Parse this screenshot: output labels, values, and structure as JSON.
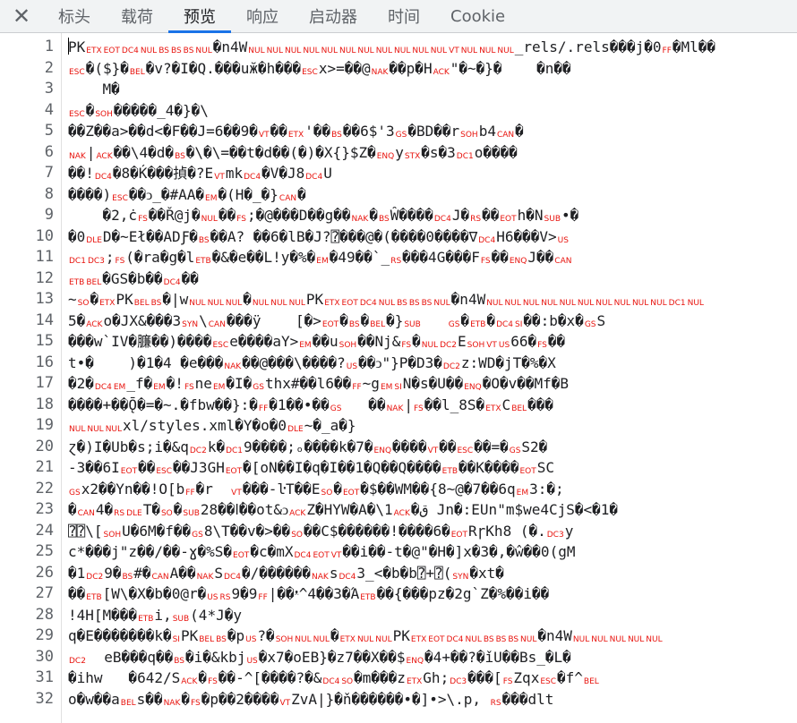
{
  "tabs": {
    "close_icon": "close-icon",
    "items": [
      {
        "label": "标头",
        "active": false
      },
      {
        "label": "载荷",
        "active": false
      },
      {
        "label": "预览",
        "active": true
      },
      {
        "label": "响应",
        "active": false
      },
      {
        "label": "启动器",
        "active": false
      },
      {
        "label": "时间",
        "active": false
      },
      {
        "label": "Cookie",
        "active": false
      }
    ],
    "accent_color": "#1a73e8"
  },
  "colors": {
    "control_char": "#e8140e",
    "text": "#202124",
    "line_number": "#5f6368"
  },
  "lines": [
    [
      "PK",
      [
        "ETX",
        "EOT",
        "DC4",
        "NUL",
        "BS",
        "BS",
        "BS",
        "NUL"
      ],
      "�n4W",
      [
        "NUL",
        "NUL",
        "NUL",
        "NUL",
        "NUL",
        "NUL",
        "NUL",
        "NUL",
        "NUL",
        "NUL",
        "NUL",
        "VT",
        "NUL",
        "NUL",
        "NUL"
      ],
      "_rels/.rels���j�0",
      [
        "FF"
      ],
      "�Ml��"
    ],
    [
      [
        "ESC"
      ],
      "�($}�",
      [
        "BEL"
      ],
      "�v?�I�Q.���uӂ�h���",
      [
        "ESC"
      ],
      "x>=��@",
      [
        "NAK"
      ],
      "��p�H",
      [
        "ACK"
      ],
      "\"�~�}�    �n��"
    ],
    [
      "    M�"
    ],
    [
      [
        "ESC"
      ],
      "�",
      [
        "SOH"
      ],
      "�����_4�}�\\"
    ],
    [
      "��Z��a>��d<�F��J=6��9�",
      [
        "VT"
      ],
      "��",
      [
        "ETX"
      ],
      "'��",
      [
        "BS"
      ],
      "��6$'3",
      [
        "GS"
      ],
      "�BD��r",
      [
        "SOH"
      ],
      "b4",
      [
        "CAN"
      ],
      "�"
    ],
    [
      [
        "NAK"
      ],
      "|",
      [
        "ACK"
      ],
      "��\\4�d�",
      [
        "BS"
      ],
      "�\\�\\=��t�d��(�)�X{}$Z�",
      [
        "ENQ"
      ],
      "y",
      [
        "STX"
      ],
      "�s�3",
      [
        "DC1"
      ],
      "o����"
    ],
    [
      "��!",
      [
        "DC4"
      ],
      "�8�Ḱ���揁�?E",
      [
        "VT"
      ],
      "mk",
      [
        "DC4"
      ],
      "�V�J8",
      [
        "DC4"
      ],
      "U"
    ],
    [
      "����)",
      [
        "ESC"
      ],
      "��ↄ_�#AA�",
      [
        "EM"
      ],
      "�(H�_�}",
      [
        "CAN"
      ],
      "�"
    ],
    [
      "    �2,ċ",
      [
        "FS"
      ],
      "��Ř@j�",
      [
        "NUL"
      ],
      "��",
      [
        "FS"
      ],
      ";�@���D��g��",
      [
        "NAK"
      ],
      "�",
      [
        "BS"
      ],
      "Ŵ����",
      [
        "DC4"
      ],
      "J�",
      [
        "RS"
      ],
      "��",
      [
        "EOT"
      ],
      "h�N",
      [
        "SUB"
      ],
      "•�"
    ],
    [
      "�0",
      [
        "DLE"
      ],
      "D�~Eł��ADƑ�",
      [
        "BS"
      ],
      "��A? ��6�lB�J?⍰���@�(����0����∇",
      [
        "DC4"
      ],
      "H6���V>",
      [
        "US"
      ]
    ],
    [
      [
        "DC1",
        "DC3"
      ],
      ";",
      [
        "FS"
      ],
      "(�ra�g�l",
      [
        "ETB"
      ],
      "�&�e��L!y�%�",
      [
        "EM"
      ],
      "�49��`_",
      [
        "RS"
      ],
      "���4G���F",
      [
        "FS"
      ],
      "��",
      [
        "ENQ"
      ],
      "J��",
      [
        "CAN"
      ]
    ],
    [
      [
        "ETB",
        "BEL"
      ],
      "�GS�b��",
      [
        "DC4"
      ],
      "��"
    ],
    [
      "~",
      [
        "SO"
      ],
      "�",
      [
        "ETX"
      ],
      "PK",
      [
        "BEL",
        "BS"
      ],
      "�|w",
      [
        "NUL",
        "NUL",
        "NUL"
      ],
      "�",
      [
        "NUL",
        "NUL",
        "NUL"
      ],
      "PK",
      [
        "ETX",
        "EOT",
        "DC4",
        "NUL",
        "BS",
        "BS",
        "BS",
        "NUL"
      ],
      "�n4W",
      [
        "NUL",
        "NUL",
        "NUL",
        "NUL",
        "NUL",
        "NUL",
        "NUL",
        "NUL",
        "NUL",
        "NUL",
        "DC1",
        "NUL"
      ]
    ],
    [
      "5�",
      [
        "ACK"
      ],
      "o�JX&���3",
      [
        "SYN"
      ],
      "\\",
      [
        "CAN"
      ],
      "���ÿ    [�>",
      [
        "EOT"
      ],
      "�",
      [
        "BS"
      ],
      "�",
      [
        "BEL"
      ],
      "�}",
      [
        "SUB"
      ],
      "   ",
      [
        "GS"
      ],
      "�",
      [
        "ETB"
      ],
      "�",
      [
        "DC4",
        "SI"
      ],
      "��:b�x�",
      [
        "GS"
      ],
      "S"
    ],
    [
      "���w`IV�臁��)����",
      [
        "ESC"
      ],
      "e����aY>",
      [
        "EM"
      ],
      "��u",
      [
        "SOH"
      ],
      "��Nj&",
      [
        "FS"
      ],
      "�",
      [
        "NUL",
        "DC2"
      ],
      "E",
      [
        "SOH",
        "VT",
        "US"
      ],
      "66�",
      [
        "FS"
      ],
      "��"
    ],
    [
      "t•�    )�1�4 �e���",
      [
        "NAK"
      ],
      "��@���\\����?",
      [
        "US"
      ],
      "��ↄ\"}P�D3�",
      [
        "DC2"
      ],
      "z:WD�jT�%�X"
    ],
    [
      "�2�",
      [
        "DC4",
        "EM"
      ],
      "_f�",
      [
        "EM"
      ],
      "�!",
      [
        "FS"
      ],
      "ne",
      [
        "EM"
      ],
      "�I�",
      [
        "GS"
      ],
      "thx#��l6��",
      [
        "FF"
      ],
      "~g",
      [
        "EM",
        "SI"
      ],
      "N�s�U��",
      [
        "ENQ"
      ],
      "�O�v��Mf�B"
    ],
    [
      "����+��Ǭ�=�~.�fbw��}:�",
      [
        "FF"
      ],
      "�1��•��",
      [
        "GS"
      ],
      "   ��",
      [
        "NAK"
      ],
      "|",
      [
        "FS"
      ],
      "��l_8S�",
      [
        "ETX"
      ],
      "C",
      [
        "BEL"
      ],
      "���"
    ],
    [
      [
        "NUL",
        "NUL",
        "NUL"
      ],
      "xl/styles.xml�Y�o�0",
      [
        "DLE"
      ],
      "~�_a�}"
    ],
    [
      "ɀ�)I�Ub�s;i�&q",
      [
        "DC2"
      ],
      "k�",
      [
        "DC1"
      ],
      "9����;ₒ����k�7�",
      [
        "ENQ"
      ],
      "����",
      [
        "VT"
      ],
      "��",
      [
        "ESC"
      ],
      "��=�",
      [
        "GS"
      ],
      "S2�"
    ],
    [
      "-3��6I",
      [
        "EOT"
      ],
      "��",
      [
        "ESC"
      ],
      "��J3GH",
      [
        "EOT"
      ],
      "�[oN��I�q�I��1�Q��Q����",
      [
        "ETB"
      ],
      "��K����",
      [
        "EOT"
      ],
      "SC"
    ],
    [
      [
        "GS"
      ],
      "x2��Yn��!O[b",
      [
        "FF"
      ],
      "�r  ",
      [
        "VT"
      ],
      "���-ŀT��E",
      [
        "SO"
      ],
      "�",
      [
        "EOT"
      ],
      "�$��WM��{8~@�7��6q",
      [
        "EM"
      ],
      "3:�;"
    ],
    [
      "�",
      [
        "CAN"
      ],
      "4�",
      [
        "RS",
        "DLE"
      ],
      "T�",
      [
        "SO"
      ],
      "�",
      [
        "SUB"
      ],
      "28��lٰ��ot&ↄ",
      [
        "ACK"
      ],
      "Z�HYW�A�\\1",
      [
        "ACK"
      ],
      "�ق Jn�:EUn\"m$we4CjS�<�1�"
    ],
    [
      "⍰⍰\\[",
      [
        "SOH"
      ],
      "U�6M�f��",
      [
        "GS"
      ],
      "8\\T��v�>��",
      [
        "SO"
      ],
      "��C$������!����6�",
      [
        "EOT"
      ],
      "RɼKh8 (�.",
      [
        "DC3"
      ],
      "y"
    ],
    [
      "c*���j\"z��/��-ɣ�%S�",
      [
        "EOT"
      ],
      "�c�mX",
      [
        "DC4",
        "EOT",
        "VT"
      ],
      "��i��-t�@\"�H�]x�3�,�ŵ��0(gM"
    ],
    [
      "�1",
      [
        "DC2"
      ],
      "9�",
      [
        "BS"
      ],
      "#�",
      [
        "CAN"
      ],
      "A��",
      [
        "NAK"
      ],
      "S",
      [
        "DC4"
      ],
      "�/������",
      [
        "NAK"
      ],
      "s",
      [
        "DC4"
      ],
      "3_<�b�b⍰+⍰(",
      [
        "SYN"
      ],
      "�xt�"
    ],
    [
      "��",
      [
        "ETB"
      ],
      "[W\\�X�b�0@r�",
      [
        "US",
        "RS"
      ],
      "9�9",
      [
        "FF"
      ],
      "|��ᵜ^4��3�Ά",
      [
        "ETB"
      ],
      "��{���pz�2g`Z�%��i��"
    ],
    [
      "!4H[M���",
      [
        "ETB"
      ],
      "i,",
      [
        "SUB"
      ],
      "(4*J�y"
    ],
    [
      "q�E�������k�",
      [
        "SI"
      ],
      "PK",
      [
        "BEL",
        "BS"
      ],
      "�p",
      [
        "US"
      ],
      "?�",
      [
        "SOH",
        "NUL",
        "NUL"
      ],
      "�",
      [
        "ETX",
        "NUL",
        "NUL"
      ],
      "PK",
      [
        "ETX",
        "EOT",
        "DC4",
        "NUL",
        "BS",
        "BS",
        "BS",
        "NUL"
      ],
      "�n4W",
      [
        "NUL",
        "NUL",
        "NUL",
        "NUL",
        "NUL"
      ]
    ],
    [
      [
        "DC2"
      ],
      "  eB���q��",
      [
        "BS"
      ],
      "�i�&kbj",
      [
        "US"
      ],
      "�x7�oEB}�z7��X��$",
      [
        "ENQ"
      ],
      "�4+��?�ǐU��Bs_�L�"
    ],
    [
      "�ihw   �642/S",
      [
        "ACK"
      ],
      "�",
      [
        "FS"
      ],
      "��-^[����?�&",
      [
        "DC4",
        "SO"
      ],
      "�m���z",
      [
        "ETX"
      ],
      "Gh;",
      [
        "DC3"
      ],
      "���[",
      [
        "FS"
      ],
      "Zqx",
      [
        "ESC"
      ],
      "�f^",
      [
        "BEL"
      ]
    ],
    [
      "o�w��a",
      [
        "BEL"
      ],
      "s��",
      [
        "NAK"
      ],
      "�",
      [
        "FS"
      ],
      "�p��2����",
      [
        "VT"
      ],
      "ZvA|}�ň������•�]•>\\.p, ",
      [
        "RS"
      ],
      "���dlt"
    ]
  ]
}
